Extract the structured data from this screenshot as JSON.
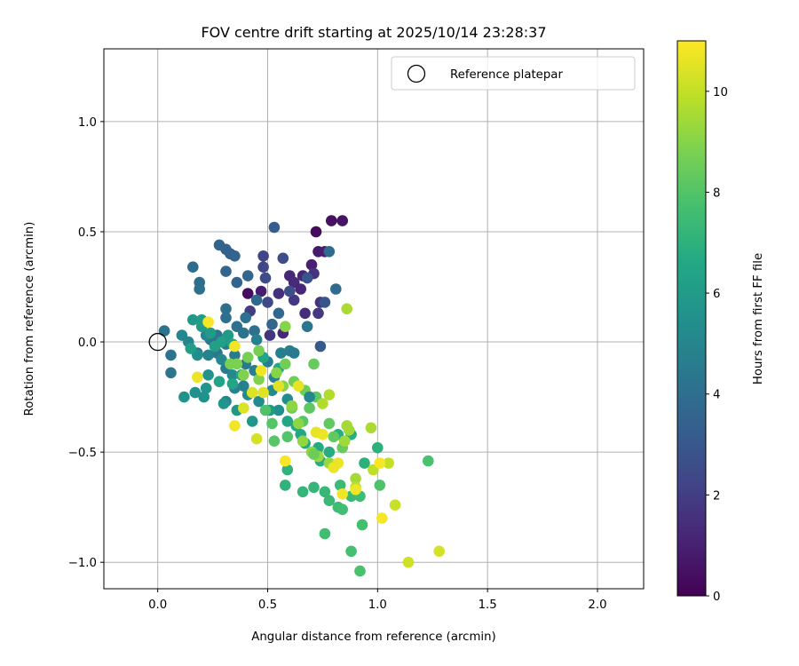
{
  "chart_data": {
    "type": "scatter",
    "title": "FOV centre drift starting at 2025/10/14 23:28:37",
    "xlabel": "Angular distance from reference (arcmin)",
    "ylabel": "Rotation from reference (arcmin)",
    "xlim": [
      -0.245,
      2.21
    ],
    "ylim": [
      -1.12,
      1.33
    ],
    "x_ticks": [
      0.0,
      0.5,
      1.0,
      1.5,
      2.0
    ],
    "x_tick_labels": [
      "0.0",
      "0.5",
      "1.0",
      "1.5",
      "2.0"
    ],
    "y_ticks": [
      -1.0,
      -0.5,
      0.0,
      0.5,
      1.0
    ],
    "y_tick_labels": [
      "−1.0",
      "−0.5",
      "0.0",
      "0.5",
      "1.0"
    ],
    "grid": true,
    "legend": {
      "position": "top-right",
      "entries": [
        "Reference platepar"
      ]
    },
    "reference_point": {
      "x": 0.0,
      "y": 0.0,
      "label": "Reference platepar",
      "marker": "open-circle"
    },
    "colorbar": {
      "label": "Hours from first FF file",
      "min": 0,
      "max": 11,
      "ticks": [
        0,
        2,
        4,
        6,
        8,
        10
      ],
      "tick_labels": [
        "0",
        "2",
        "4",
        "6",
        "8",
        "10"
      ],
      "colormap": "viridis"
    },
    "series": [
      {
        "name": "FOV centre drift",
        "points": [
          [
            0.72,
            0.5,
            0.3
          ],
          [
            0.79,
            0.55,
            0.5
          ],
          [
            0.84,
            0.55,
            0.6
          ],
          [
            0.73,
            0.41,
            0.8
          ],
          [
            0.76,
            0.41,
            0.9
          ],
          [
            0.7,
            0.35,
            1.0
          ],
          [
            0.66,
            0.3,
            1.1
          ],
          [
            0.6,
            0.3,
            1.2
          ],
          [
            0.41,
            0.22,
            0.4
          ],
          [
            0.47,
            0.23,
            0.9
          ],
          [
            0.62,
            0.27,
            1.3
          ],
          [
            0.65,
            0.24,
            1.2
          ],
          [
            0.55,
            0.22,
            1.5
          ],
          [
            0.71,
            0.31,
            1.6
          ],
          [
            0.67,
            0.13,
            1.4
          ],
          [
            0.74,
            0.18,
            1.6
          ],
          [
            0.62,
            0.19,
            1.8
          ],
          [
            0.73,
            0.13,
            1.8
          ],
          [
            0.57,
            0.04,
            1.2
          ],
          [
            0.51,
            0.03,
            1.7
          ],
          [
            0.42,
            0.14,
            2.0
          ],
          [
            0.48,
            0.39,
            2.2
          ],
          [
            0.48,
            0.34,
            2.3
          ],
          [
            0.49,
            0.29,
            2.5
          ],
          [
            0.5,
            0.18,
            2.4
          ],
          [
            0.57,
            0.38,
            2.6
          ],
          [
            0.6,
            0.23,
            2.6
          ],
          [
            0.68,
            0.29,
            2.8
          ],
          [
            0.76,
            0.18,
            2.9
          ],
          [
            0.74,
            -0.02,
            3.1
          ],
          [
            0.53,
            0.52,
            3.2
          ],
          [
            0.31,
            0.42,
            3.4
          ],
          [
            0.33,
            0.4,
            3.4
          ],
          [
            0.35,
            0.39,
            3.5
          ],
          [
            0.28,
            0.44,
            3.5
          ],
          [
            0.31,
            0.32,
            3.6
          ],
          [
            0.36,
            0.27,
            3.5
          ],
          [
            0.41,
            0.3,
            3.6
          ],
          [
            0.45,
            0.19,
            3.7
          ],
          [
            0.52,
            0.08,
            3.6
          ],
          [
            0.55,
            0.13,
            3.7
          ],
          [
            0.78,
            0.41,
            3.8
          ],
          [
            0.81,
            0.24,
            3.8
          ],
          [
            0.16,
            0.34,
            3.9
          ],
          [
            0.19,
            0.27,
            3.9
          ],
          [
            0.19,
            0.24,
            4.0
          ],
          [
            0.31,
            0.15,
            4.0
          ],
          [
            0.31,
            0.11,
            4.0
          ],
          [
            0.36,
            0.07,
            4.1
          ],
          [
            0.4,
            0.11,
            4.1
          ],
          [
            0.44,
            0.05,
            4.1
          ],
          [
            0.39,
            0.04,
            4.2
          ],
          [
            0.03,
            0.05,
            4.2
          ],
          [
            0.06,
            -0.06,
            4.2
          ],
          [
            0.06,
            -0.14,
            4.3
          ],
          [
            0.18,
            -0.05,
            4.3
          ],
          [
            0.24,
            0.01,
            4.3
          ],
          [
            0.27,
            0.03,
            4.3
          ],
          [
            0.31,
            -0.01,
            4.4
          ],
          [
            0.27,
            -0.05,
            4.4
          ],
          [
            0.35,
            -0.06,
            4.5
          ],
          [
            0.4,
            -0.1,
            4.5
          ],
          [
            0.31,
            -0.12,
            4.5
          ],
          [
            0.44,
            -0.13,
            4.6
          ],
          [
            0.5,
            -0.09,
            4.6
          ],
          [
            0.56,
            -0.05,
            4.7
          ],
          [
            0.6,
            -0.04,
            4.7
          ],
          [
            0.45,
            0.01,
            4.7
          ],
          [
            0.53,
            -0.16,
            4.8
          ],
          [
            0.39,
            -0.2,
            4.8
          ],
          [
            0.31,
            -0.27,
            4.9
          ],
          [
            0.35,
            -0.21,
            4.9
          ],
          [
            0.23,
            -0.06,
            4.9
          ],
          [
            0.11,
            0.03,
            5.0
          ],
          [
            0.14,
            0.0,
            5.0
          ],
          [
            0.22,
            0.03,
            5.0
          ],
          [
            0.26,
            -0.02,
            5.1
          ],
          [
            0.29,
            -0.08,
            5.1
          ],
          [
            0.34,
            -0.15,
            5.1
          ],
          [
            0.41,
            -0.24,
            5.2
          ],
          [
            0.46,
            -0.27,
            5.2
          ],
          [
            0.52,
            -0.22,
            5.2
          ],
          [
            0.59,
            -0.26,
            5.3
          ],
          [
            0.55,
            -0.31,
            5.4
          ],
          [
            0.18,
            -0.06,
            5.4
          ],
          [
            0.17,
            -0.23,
            5.5
          ],
          [
            0.21,
            -0.25,
            5.5
          ],
          [
            0.12,
            -0.25,
            5.6
          ],
          [
            0.23,
            -0.15,
            5.6
          ],
          [
            0.22,
            -0.21,
            5.7
          ],
          [
            0.3,
            -0.28,
            5.7
          ],
          [
            0.36,
            -0.31,
            5.8
          ],
          [
            0.43,
            -0.36,
            5.8
          ],
          [
            0.51,
            -0.31,
            5.9
          ],
          [
            0.16,
            0.1,
            5.9
          ],
          [
            0.2,
            0.07,
            6.0
          ],
          [
            0.24,
            0.04,
            6.0
          ],
          [
            0.32,
            0.03,
            6.0
          ],
          [
            0.2,
            0.1,
            6.1
          ],
          [
            0.15,
            -0.03,
            6.1
          ],
          [
            0.26,
            -0.02,
            6.2
          ],
          [
            0.29,
            0.0,
            6.2
          ],
          [
            0.34,
            -0.01,
            6.3
          ],
          [
            0.28,
            -0.18,
            6.3
          ],
          [
            0.34,
            -0.19,
            6.4
          ],
          [
            0.38,
            -0.15,
            6.4
          ],
          [
            0.48,
            -0.07,
            6.5
          ],
          [
            0.55,
            -0.12,
            6.5
          ],
          [
            0.59,
            -0.36,
            6.5
          ],
          [
            0.63,
            -0.38,
            6.6
          ],
          [
            0.65,
            -0.42,
            6.6
          ],
          [
            0.67,
            -0.46,
            6.7
          ],
          [
            0.73,
            -0.48,
            6.7
          ],
          [
            0.74,
            -0.54,
            6.8
          ],
          [
            0.78,
            -0.5,
            6.8
          ],
          [
            0.82,
            -0.42,
            6.9
          ],
          [
            0.88,
            -0.42,
            6.9
          ],
          [
            0.94,
            -0.55,
            7.0
          ],
          [
            1.0,
            -0.48,
            7.0
          ],
          [
            0.58,
            -0.65,
            7.1
          ],
          [
            0.59,
            -0.58,
            7.1
          ],
          [
            0.66,
            -0.68,
            7.2
          ],
          [
            0.71,
            -0.66,
            7.2
          ],
          [
            0.76,
            -0.68,
            7.3
          ],
          [
            0.78,
            -0.72,
            7.3
          ],
          [
            0.83,
            -0.65,
            7.4
          ],
          [
            0.88,
            -0.7,
            7.4
          ],
          [
            0.92,
            -0.7,
            7.5
          ],
          [
            0.82,
            -0.75,
            7.5
          ],
          [
            0.84,
            -0.76,
            7.6
          ],
          [
            0.76,
            -0.87,
            7.6
          ],
          [
            0.88,
            -0.95,
            7.7
          ],
          [
            0.93,
            -0.83,
            7.7
          ],
          [
            0.92,
            -1.04,
            7.8
          ],
          [
            1.23,
            -0.54,
            7.8
          ],
          [
            1.01,
            -0.65,
            7.9
          ],
          [
            0.49,
            -0.31,
            7.9
          ],
          [
            0.52,
            -0.37,
            8.0
          ],
          [
            0.59,
            -0.43,
            8.0
          ],
          [
            0.53,
            -0.45,
            8.1
          ],
          [
            0.66,
            -0.36,
            8.1
          ],
          [
            0.69,
            -0.3,
            8.2
          ],
          [
            0.72,
            -0.25,
            8.2
          ],
          [
            0.78,
            -0.37,
            8.3
          ],
          [
            0.8,
            -0.43,
            8.3
          ],
          [
            0.84,
            -0.48,
            8.4
          ],
          [
            0.71,
            -0.1,
            8.4
          ],
          [
            0.67,
            -0.22,
            8.5
          ],
          [
            0.61,
            -0.3,
            8.5
          ],
          [
            0.58,
            -0.1,
            8.6
          ],
          [
            0.62,
            -0.18,
            8.6
          ],
          [
            0.46,
            -0.04,
            8.7
          ],
          [
            0.41,
            -0.07,
            8.7
          ],
          [
            0.36,
            -0.1,
            8.8
          ],
          [
            0.33,
            -0.1,
            8.8
          ],
          [
            0.39,
            -0.15,
            8.9
          ],
          [
            0.46,
            -0.17,
            8.9
          ],
          [
            0.54,
            -0.14,
            9.0
          ],
          [
            0.57,
            -0.2,
            9.0
          ],
          [
            0.61,
            -0.29,
            9.1
          ],
          [
            0.64,
            -0.37,
            9.1
          ],
          [
            0.66,
            -0.45,
            9.2
          ],
          [
            0.7,
            -0.5,
            9.2
          ],
          [
            0.73,
            -0.52,
            9.3
          ],
          [
            0.78,
            -0.55,
            9.3
          ],
          [
            0.85,
            -0.45,
            9.4
          ],
          [
            0.87,
            -0.4,
            9.4
          ],
          [
            0.9,
            -0.62,
            9.5
          ],
          [
            0.97,
            -0.39,
            9.6
          ],
          [
            0.86,
            0.15,
            9.6
          ],
          [
            0.75,
            -0.28,
            9.7
          ],
          [
            0.78,
            -0.24,
            9.7
          ],
          [
            0.9,
            -0.66,
            9.8
          ],
          [
            0.98,
            -0.58,
            9.9
          ],
          [
            1.05,
            -0.55,
            10.0
          ],
          [
            1.08,
            -0.74,
            10.1
          ],
          [
            1.14,
            -1.0,
            10.2
          ],
          [
            1.28,
            -0.95,
            10.3
          ],
          [
            0.45,
            -0.44,
            10.3
          ],
          [
            0.39,
            -0.3,
            10.4
          ],
          [
            0.43,
            -0.23,
            10.4
          ],
          [
            0.48,
            -0.23,
            10.5
          ],
          [
            0.55,
            -0.2,
            10.5
          ],
          [
            0.64,
            -0.2,
            10.6
          ],
          [
            0.72,
            -0.41,
            10.6
          ],
          [
            0.75,
            -0.42,
            10.7
          ],
          [
            0.8,
            -0.57,
            10.7
          ],
          [
            0.82,
            -0.55,
            10.7
          ],
          [
            0.84,
            -0.69,
            10.8
          ],
          [
            0.9,
            -0.67,
            10.8
          ],
          [
            1.01,
            -0.55,
            10.9
          ],
          [
            1.02,
            -0.8,
            10.9
          ],
          [
            0.58,
            -0.54,
            10.9
          ],
          [
            0.35,
            -0.38,
            10.8
          ],
          [
            0.18,
            -0.16,
            10.7
          ],
          [
            0.23,
            0.09,
            10.9
          ],
          [
            0.35,
            -0.02,
            10.8
          ],
          [
            0.47,
            -0.13,
            10.8
          ],
          [
            0.58,
            0.07,
            9.0
          ],
          [
            0.68,
            0.07,
            4.3
          ],
          [
            0.62,
            -0.05,
            4.5
          ],
          [
            0.69,
            -0.25,
            5.0
          ],
          [
            0.86,
            -0.38,
            9.5
          ],
          [
            0.71,
            -0.51,
            8.5
          ]
        ]
      }
    ]
  }
}
